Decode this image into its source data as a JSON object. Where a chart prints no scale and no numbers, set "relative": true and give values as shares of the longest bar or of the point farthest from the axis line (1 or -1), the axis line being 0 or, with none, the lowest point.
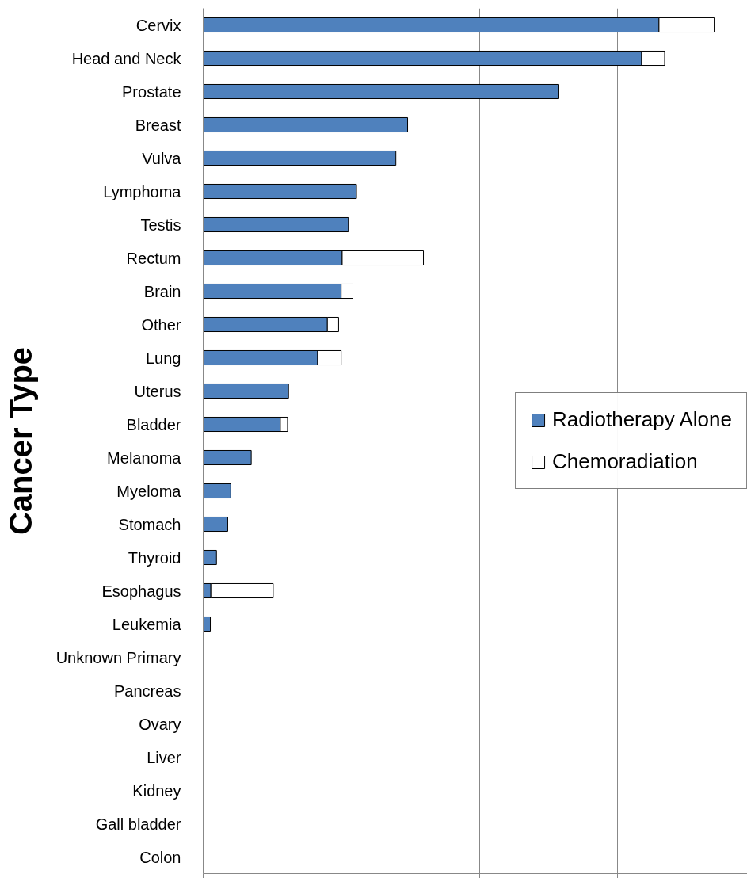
{
  "chart_data": {
    "type": "bar",
    "orientation": "horizontal",
    "stacked": true,
    "relative": true,
    "ylabel": "Cancer Type",
    "categories": [
      "Cervix",
      "Head and Neck",
      "Prostate",
      "Breast",
      "Vulva",
      "Lymphoma",
      "Testis",
      "Rectum",
      "Brain",
      "Other",
      "Lung",
      "Uterus",
      "Bladder",
      "Melanoma",
      "Myeloma",
      "Stomach",
      "Thyroid",
      "Esophagus",
      "Leukemia",
      "Unknown Primary",
      "Pancreas",
      "Ovary",
      "Liver",
      "Kidney",
      "Gall bladder",
      "Colon"
    ],
    "series": [
      {
        "name": "Radiotherapy Alone",
        "color": "#4f81bd",
        "values": [
          0.892,
          0.858,
          0.696,
          0.4,
          0.377,
          0.3,
          0.284,
          0.272,
          0.27,
          0.243,
          0.224,
          0.167,
          0.151,
          0.094,
          0.054,
          0.048,
          0.026,
          0.015,
          0.014,
          0,
          0,
          0,
          0,
          0,
          0,
          0
        ]
      },
      {
        "name": "Chemoradiation",
        "color": "#ffffff",
        "values": [
          0.108,
          0.045,
          0,
          0,
          0,
          0,
          0,
          0.159,
          0.023,
          0.022,
          0.046,
          0,
          0.014,
          0,
          0,
          0,
          0,
          0.122,
          0,
          0,
          0,
          0,
          0,
          0,
          0,
          0
        ]
      }
    ],
    "legend": "right",
    "tick_labels": "y"
  }
}
